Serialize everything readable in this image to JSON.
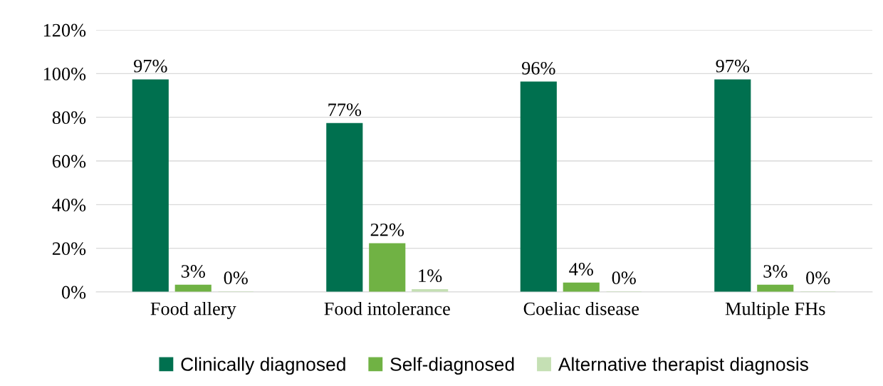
{
  "chart_data": {
    "type": "bar",
    "categories": [
      "Food allery",
      "Food intolerance",
      "Coeliac disease",
      "Multiple FHs"
    ],
    "series": [
      {
        "name": "Clinically diagnosed",
        "color": "#00704f",
        "values": [
          97,
          77,
          96,
          97
        ],
        "value_labels": [
          "97%",
          "77%",
          "96%",
          "97%"
        ]
      },
      {
        "name": "Self-diagnosed",
        "color": "#70b244",
        "values": [
          3,
          22,
          4,
          3
        ],
        "value_labels": [
          "3%",
          "22%",
          "4%",
          "3%"
        ]
      },
      {
        "name": "Alternative therapist diagnosis",
        "color": "#c5e0b4",
        "values": [
          0,
          1,
          0,
          0
        ],
        "value_labels": [
          "0%",
          "1%",
          "0%",
          "0%"
        ]
      }
    ],
    "ylim": [
      0,
      120
    ],
    "yticks": [
      {
        "value": 0,
        "label": "0%"
      },
      {
        "value": 20,
        "label": "20%"
      },
      {
        "value": 40,
        "label": "40%"
      },
      {
        "value": 60,
        "label": "60%"
      },
      {
        "value": 80,
        "label": "80%"
      },
      {
        "value": 100,
        "label": "100%"
      },
      {
        "value": 120,
        "label": "120%"
      }
    ],
    "grid": "y",
    "legend": "bottom"
  }
}
